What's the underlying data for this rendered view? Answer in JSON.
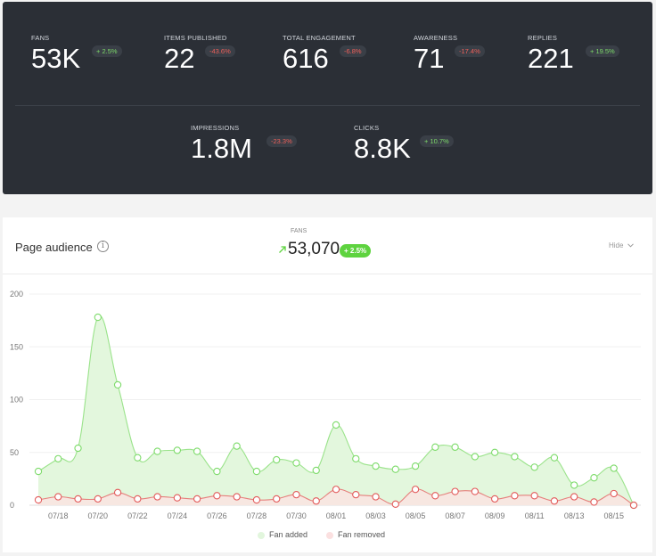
{
  "stats": {
    "row1": [
      {
        "label": "FANS",
        "value": "53K",
        "change": "+ 2.5%",
        "trend": "up"
      },
      {
        "label": "ITEMS PUBLISHED",
        "value": "22",
        "change": "-43.6%",
        "trend": "down"
      },
      {
        "label": "TOTAL ENGAGEMENT",
        "value": "616",
        "change": "-6.8%",
        "trend": "down"
      },
      {
        "label": "AWARENESS",
        "value": "71",
        "change": "-17.4%",
        "trend": "down"
      },
      {
        "label": "REPLIES",
        "value": "221",
        "change": "+ 19.5%",
        "trend": "up"
      }
    ],
    "row2": [
      {
        "label": "IMPRESSIONS",
        "value": "1.8M",
        "change": "-23.3%",
        "trend": "down"
      },
      {
        "label": "CLICKS",
        "value": "8.8K",
        "change": "+ 10.7%",
        "trend": "up"
      }
    ]
  },
  "audience": {
    "title": "Page audience",
    "info_icon": "i",
    "fans_label": "FANS",
    "fans_value": "53,070",
    "fans_change": "+ 2.5%",
    "hide_label": "Hide",
    "colors": {
      "added": "#7ddb6a",
      "removed": "#e35b5b",
      "badge": "#5ed33f"
    }
  },
  "chart_data": {
    "type": "area",
    "x": [
      "07/17",
      "07/18",
      "07/19",
      "07/20",
      "07/21",
      "07/22",
      "07/23",
      "07/24",
      "07/25",
      "07/26",
      "07/27",
      "07/28",
      "07/29",
      "07/30",
      "07/31",
      "08/01",
      "08/02",
      "08/03",
      "08/04",
      "08/05",
      "08/06",
      "08/07",
      "08/08",
      "08/09",
      "08/10",
      "08/11",
      "08/12",
      "08/13",
      "08/14",
      "08/15",
      "08/16"
    ],
    "x_tick_labels": [
      "07/18",
      "07/20",
      "07/22",
      "07/24",
      "07/26",
      "07/28",
      "07/30",
      "08/01",
      "08/03",
      "08/05",
      "08/07",
      "08/09",
      "08/11",
      "08/13",
      "08/15"
    ],
    "series": [
      {
        "name": "Fan added",
        "color": "#7ddb6a",
        "values": [
          32,
          44,
          54,
          178,
          114,
          45,
          51,
          52,
          51,
          32,
          56,
          32,
          43,
          40,
          33,
          76,
          44,
          37,
          34,
          37,
          55,
          55,
          46,
          50,
          46,
          36,
          45,
          19,
          26,
          35,
          0
        ]
      },
      {
        "name": "Fan removed",
        "color": "#e35b5b",
        "values": [
          5,
          8,
          6,
          6,
          12,
          6,
          8,
          7,
          6,
          9,
          8,
          5,
          6,
          10,
          4,
          15,
          10,
          8,
          1,
          15,
          9,
          13,
          13,
          6,
          9,
          9,
          4,
          8,
          3,
          11,
          0
        ]
      }
    ],
    "yticks": [
      0,
      50,
      100,
      150,
      200
    ],
    "ylim": [
      0,
      200
    ],
    "grid": true,
    "legend": "bottom-center"
  }
}
